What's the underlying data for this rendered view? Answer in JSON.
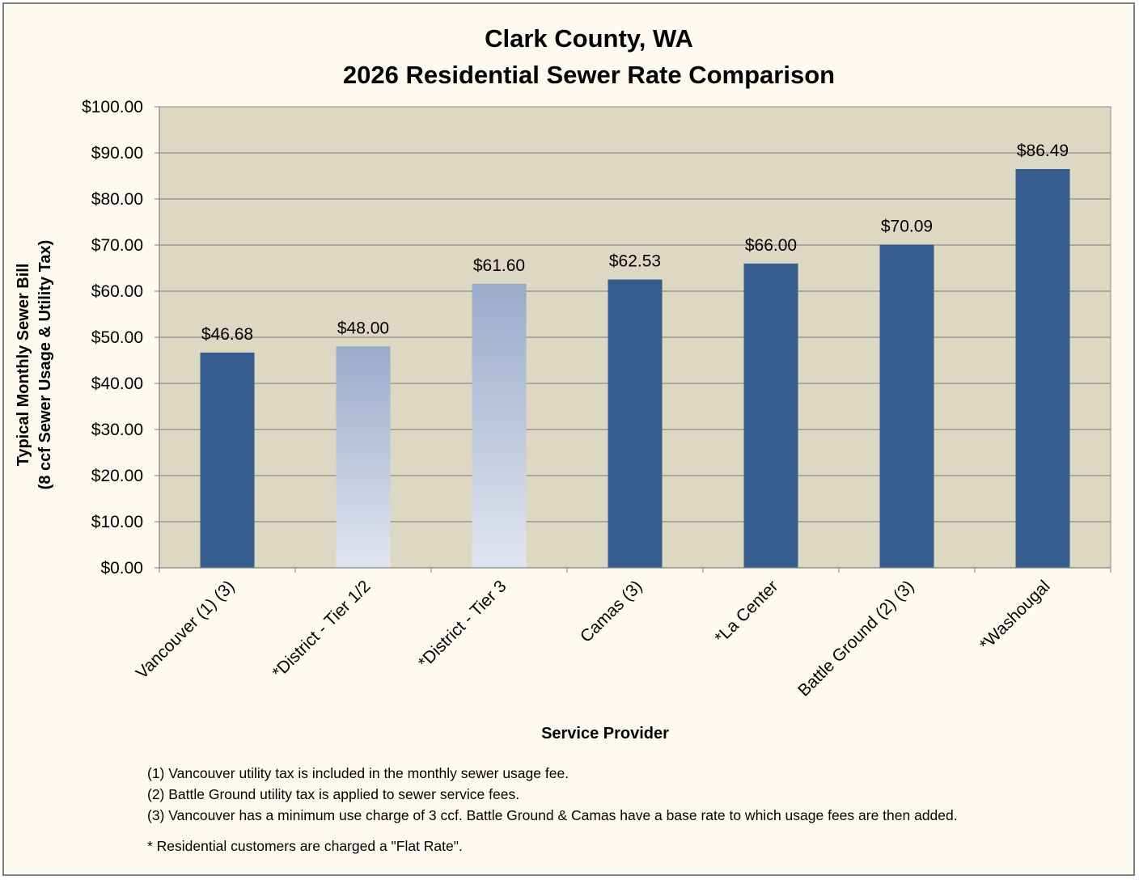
{
  "chart_data": {
    "type": "bar",
    "title_lines": [
      "Clark County, WA",
      "2026 Residential Sewer Rate Comparison"
    ],
    "xlabel": "Service Provider",
    "ylabel_lines": [
      "Typical Monthly Sewer Bill",
      "(8 ccf Sewer Usage & Utility Tax)"
    ],
    "ylim": [
      0,
      100
    ],
    "yticks": [
      0,
      10,
      20,
      30,
      40,
      50,
      60,
      70,
      80,
      90,
      100
    ],
    "ytick_labels": [
      "$0.00",
      "$10.00",
      "$20.00",
      "$30.00",
      "$40.00",
      "$50.00",
      "$60.00",
      "$70.00",
      "$80.00",
      "$90.00",
      "$100.00"
    ],
    "grid": true,
    "categories": [
      "Vancouver (1) (3)",
      "*District - Tier 1/2",
      "*District - Tier 3",
      "Camas (3)",
      "*La Center",
      "Battle Ground (2) (3)",
      "*Washougal"
    ],
    "values": [
      46.68,
      48.0,
      61.6,
      62.53,
      66.0,
      70.09,
      86.49
    ],
    "data_labels": [
      "$46.68",
      "$48.00",
      "$61.60",
      "$62.53",
      "$66.00",
      "$70.09",
      "$86.49"
    ],
    "bar_styles": [
      "solid",
      "gradient",
      "gradient",
      "solid",
      "solid",
      "solid",
      "solid"
    ],
    "colors": {
      "bar_solid": "#355e8f",
      "gradient_top": "#99abca",
      "gradient_bottom": "#e2e5f0",
      "plot_background": "#ddd8c2",
      "page_background": "#fdfbf0",
      "gridline": "#8c8c8c"
    }
  },
  "footnotes": [
    "(1) Vancouver utility tax is included in the monthly sewer usage fee.",
    "(2) Battle Ground utility tax is applied to sewer service fees.",
    "(3) Vancouver has a minimum use charge of 3 ccf.  Battle Ground & Camas have a base rate to which usage fees are then added."
  ],
  "flat_rate_note": "* Residential customers are charged a \"Flat Rate\"."
}
